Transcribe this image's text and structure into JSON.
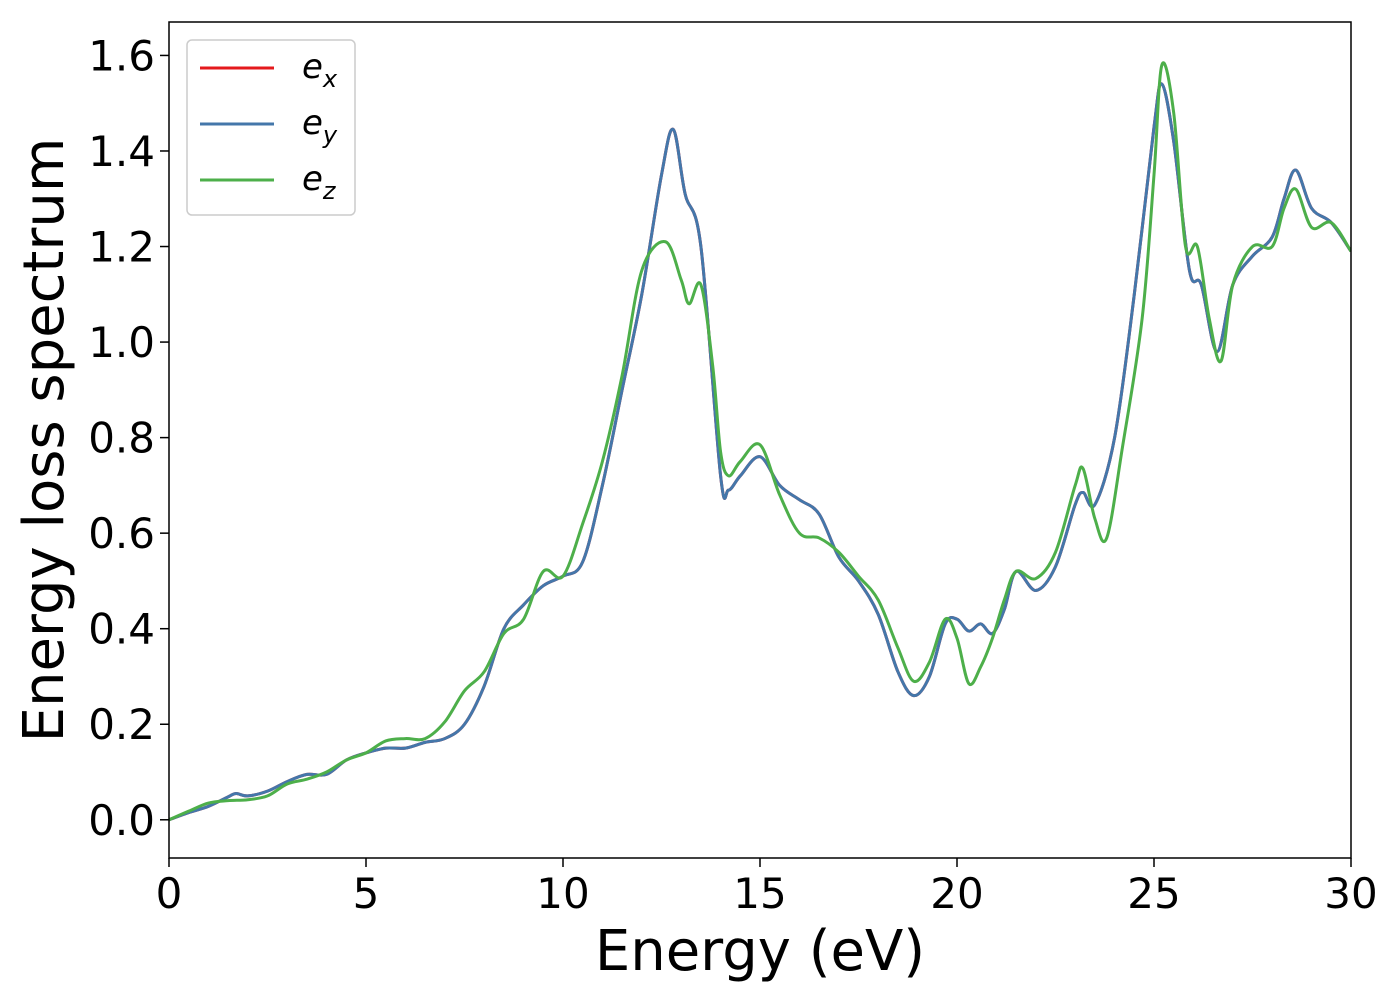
{
  "chart_data": {
    "type": "line",
    "xlabel": "Energy (eV)",
    "ylabel": "Energy loss spectrum",
    "xlim": [
      0,
      30
    ],
    "ylim": [
      -0.08,
      1.67
    ],
    "xticks": [
      0,
      5,
      10,
      15,
      20,
      25,
      30
    ],
    "yticks": [
      0.0,
      0.2,
      0.4,
      0.6,
      0.8,
      1.0,
      1.2,
      1.4,
      1.6
    ],
    "xtick_labels": [
      "0",
      "5",
      "10",
      "15",
      "20",
      "25",
      "30"
    ],
    "ytick_labels": [
      "0.0",
      "0.2",
      "0.4",
      "0.6",
      "0.8",
      "1.0",
      "1.2",
      "1.4",
      "1.6"
    ],
    "grid": false,
    "legend_position": "top-left",
    "series": [
      {
        "name": "e",
        "sub": "x",
        "color": "#e41a1c",
        "x": [
          0,
          0.5,
          1,
          1.5,
          1.7,
          2,
          2.5,
          3,
          3.5,
          4,
          4.5,
          5,
          5.5,
          6,
          6.5,
          7,
          7.5,
          8,
          8.5,
          9,
          9.5,
          10,
          10.5,
          11,
          11.5,
          12,
          12.5,
          12.8,
          13.1,
          13.5,
          14,
          14.2,
          14.5,
          15,
          15.5,
          16,
          16.5,
          17,
          17.5,
          18,
          18.5,
          18.9,
          19.3,
          19.7,
          20,
          20.3,
          20.6,
          20.9,
          21.2,
          21.5,
          22,
          22.5,
          23,
          23.2,
          23.5,
          24,
          24.5,
          25,
          25.2,
          25.5,
          25.9,
          26.2,
          26.6,
          27,
          27.5,
          28,
          28.3,
          28.6,
          29,
          29.5,
          30
        ],
        "y": [
          0,
          0.015,
          0.028,
          0.048,
          0.055,
          0.05,
          0.06,
          0.08,
          0.095,
          0.095,
          0.125,
          0.14,
          0.15,
          0.15,
          0.162,
          0.17,
          0.2,
          0.28,
          0.4,
          0.45,
          0.49,
          0.51,
          0.54,
          0.7,
          0.9,
          1.1,
          1.35,
          1.445,
          1.31,
          1.2,
          0.72,
          0.69,
          0.72,
          0.76,
          0.7,
          0.67,
          0.64,
          0.55,
          0.5,
          0.43,
          0.31,
          0.26,
          0.3,
          0.41,
          0.42,
          0.395,
          0.41,
          0.39,
          0.44,
          0.52,
          0.48,
          0.53,
          0.66,
          0.685,
          0.66,
          0.8,
          1.1,
          1.45,
          1.54,
          1.42,
          1.15,
          1.12,
          0.98,
          1.12,
          1.18,
          1.22,
          1.3,
          1.36,
          1.28,
          1.25,
          1.19
        ]
      },
      {
        "name": "e",
        "sub": "y",
        "color": "#4477aa",
        "x": [
          0,
          0.5,
          1,
          1.5,
          1.7,
          2,
          2.5,
          3,
          3.5,
          4,
          4.5,
          5,
          5.5,
          6,
          6.5,
          7,
          7.5,
          8,
          8.5,
          9,
          9.5,
          10,
          10.5,
          11,
          11.5,
          12,
          12.5,
          12.8,
          13.1,
          13.5,
          14,
          14.2,
          14.5,
          15,
          15.5,
          16,
          16.5,
          17,
          17.5,
          18,
          18.5,
          18.9,
          19.3,
          19.7,
          20,
          20.3,
          20.6,
          20.9,
          21.2,
          21.5,
          22,
          22.5,
          23,
          23.2,
          23.5,
          24,
          24.5,
          25,
          25.2,
          25.5,
          25.9,
          26.2,
          26.6,
          27,
          27.5,
          28,
          28.3,
          28.6,
          29,
          29.5,
          30
        ],
        "y": [
          0,
          0.015,
          0.028,
          0.048,
          0.055,
          0.05,
          0.06,
          0.08,
          0.095,
          0.095,
          0.125,
          0.14,
          0.15,
          0.15,
          0.162,
          0.17,
          0.2,
          0.28,
          0.4,
          0.45,
          0.49,
          0.51,
          0.54,
          0.7,
          0.9,
          1.1,
          1.35,
          1.445,
          1.31,
          1.2,
          0.72,
          0.69,
          0.72,
          0.76,
          0.7,
          0.67,
          0.64,
          0.55,
          0.5,
          0.43,
          0.31,
          0.26,
          0.3,
          0.41,
          0.42,
          0.395,
          0.41,
          0.39,
          0.44,
          0.52,
          0.48,
          0.53,
          0.66,
          0.685,
          0.66,
          0.8,
          1.1,
          1.45,
          1.54,
          1.42,
          1.15,
          1.12,
          0.98,
          1.12,
          1.18,
          1.22,
          1.3,
          1.36,
          1.28,
          1.25,
          1.19
        ]
      },
      {
        "name": "e",
        "sub": "z",
        "color": "#4daf4a",
        "x": [
          0,
          0.5,
          1,
          1.5,
          2,
          2.5,
          3,
          3.5,
          4,
          4.5,
          5,
          5.5,
          6,
          6.5,
          7,
          7.5,
          8,
          8.5,
          9,
          9.5,
          10,
          10.5,
          11,
          11.5,
          12,
          12.6,
          13,
          13.2,
          13.5,
          13.8,
          14,
          14.2,
          14.5,
          15,
          15.5,
          16,
          16.5,
          17,
          17.5,
          18,
          18.5,
          18.9,
          19.3,
          19.7,
          20,
          20.3,
          20.6,
          20.9,
          21.2,
          21.5,
          22,
          22.5,
          23,
          23.2,
          23.5,
          23.8,
          24.2,
          24.7,
          25,
          25.2,
          25.5,
          25.8,
          26.1,
          26.4,
          26.7,
          27,
          27.5,
          28,
          28.3,
          28.6,
          29,
          29.5,
          30
        ],
        "y": [
          0,
          0.018,
          0.035,
          0.04,
          0.042,
          0.05,
          0.075,
          0.085,
          0.1,
          0.125,
          0.14,
          0.165,
          0.17,
          0.17,
          0.205,
          0.27,
          0.31,
          0.39,
          0.42,
          0.52,
          0.51,
          0.62,
          0.75,
          0.93,
          1.15,
          1.21,
          1.13,
          1.08,
          1.12,
          0.95,
          0.77,
          0.72,
          0.75,
          0.785,
          0.68,
          0.6,
          0.59,
          0.56,
          0.51,
          0.46,
          0.36,
          0.29,
          0.33,
          0.42,
          0.38,
          0.285,
          0.32,
          0.38,
          0.46,
          0.52,
          0.505,
          0.56,
          0.7,
          0.735,
          0.63,
          0.59,
          0.78,
          1.05,
          1.35,
          1.58,
          1.48,
          1.2,
          1.2,
          1.05,
          0.96,
          1.12,
          1.2,
          1.2,
          1.28,
          1.32,
          1.24,
          1.25,
          1.19
        ]
      }
    ]
  }
}
